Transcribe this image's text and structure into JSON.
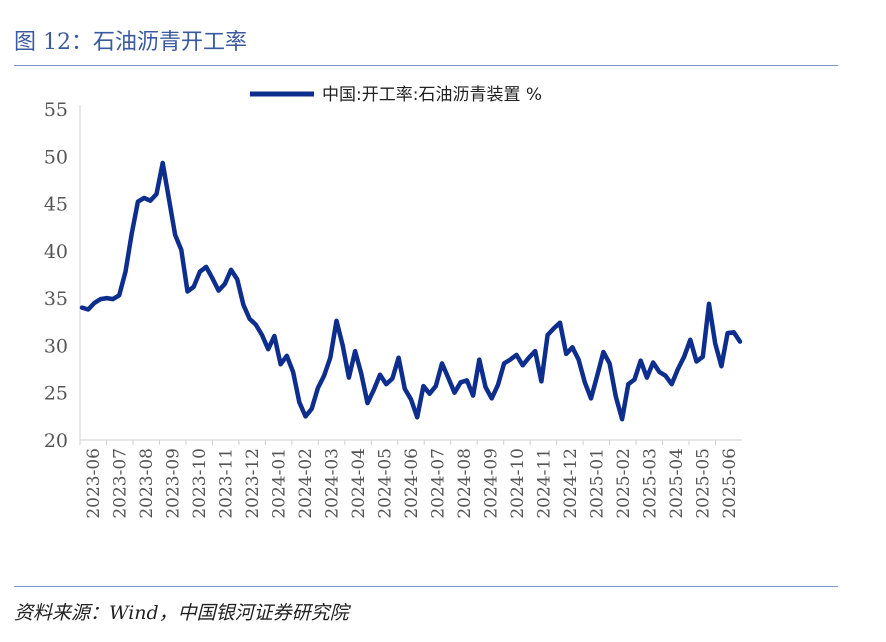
{
  "figure": {
    "title": "图 12：石油沥青开工率",
    "source": "资料来源：Wind，中国银河证券研究院"
  },
  "colors": {
    "line": "#0e2e8e",
    "accent": "#3a5aa0",
    "rule": "#7f93c4"
  },
  "chart_data": {
    "type": "line",
    "title": "",
    "xlabel": "",
    "ylabel": "",
    "ylim": [
      20,
      55
    ],
    "yticks": [
      20,
      25,
      30,
      35,
      40,
      45,
      50,
      55
    ],
    "grid": false,
    "legend_position": "top-center",
    "x_tick_labels": [
      "2023-06",
      "2023-07",
      "2023-08",
      "2023-09",
      "2023-10",
      "2023-11",
      "2023-12",
      "2024-01",
      "2024-02",
      "2024-03",
      "2024-04",
      "2024-05",
      "2024-06",
      "2024-07",
      "2024-08",
      "2024-09",
      "2024-10",
      "2024-11",
      "2024-12",
      "2025-01",
      "2025-02",
      "2025-03",
      "2025-04",
      "2025-05",
      "2025-06"
    ],
    "series": [
      {
        "name": "中国:开工率:石油沥青装置 %",
        "values": [
          34.0,
          33.8,
          34.5,
          34.9,
          35.0,
          34.9,
          35.3,
          37.8,
          41.8,
          45.2,
          45.6,
          45.3,
          46.0,
          49.3,
          45.5,
          41.7,
          40.1,
          35.7,
          36.2,
          37.8,
          38.3,
          37.1,
          35.8,
          36.5,
          38.0,
          37.0,
          34.3,
          32.8,
          32.2,
          31.1,
          29.6,
          31.0,
          28.0,
          28.9,
          27.2,
          24.0,
          22.5,
          23.3,
          25.5,
          26.8,
          28.7,
          32.6,
          30.0,
          26.6,
          29.4,
          27.0,
          23.9,
          25.3,
          26.9,
          25.9,
          26.5,
          28.7,
          25.4,
          24.3,
          22.4,
          25.7,
          24.9,
          25.7,
          28.1,
          26.6,
          25.0,
          26.1,
          26.3,
          24.7,
          28.5,
          25.6,
          24.4,
          25.8,
          28.1,
          28.5,
          29.0,
          27.9,
          28.7,
          29.4,
          26.2,
          31.1,
          31.8,
          32.4,
          29.1,
          29.8,
          28.5,
          26.1,
          24.4,
          26.8,
          29.3,
          28.1,
          24.6,
          22.2,
          25.9,
          26.4,
          28.4,
          26.6,
          28.2,
          27.2,
          26.8,
          25.9,
          27.5,
          28.8,
          30.6,
          28.3,
          28.8,
          34.4,
          30.2,
          27.8,
          31.3,
          31.4,
          30.4
        ]
      }
    ]
  }
}
